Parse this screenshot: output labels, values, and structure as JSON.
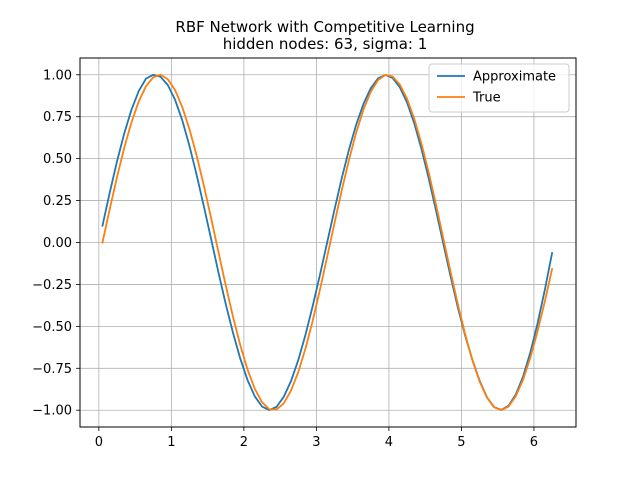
{
  "chart_data": {
    "type": "line",
    "title_line1": "RBF Network with Competitive Learning",
    "title_line2": "hidden nodes: 63, sigma: 1",
    "xlabel": "",
    "ylabel": "",
    "xlim": [
      -0.26,
      6.58
    ],
    "ylim": [
      -1.1,
      1.1
    ],
    "xticks": [
      0,
      1,
      2,
      3,
      4,
      5,
      6
    ],
    "xtick_labels": [
      "0",
      "1",
      "2",
      "3",
      "4",
      "5",
      "6"
    ],
    "yticks": [
      -1.0,
      -0.75,
      -0.5,
      -0.25,
      0.0,
      0.25,
      0.5,
      0.75,
      1.0
    ],
    "ytick_labels": [
      "−1.00",
      "−0.75",
      "−0.50",
      "−0.25",
      "0.00",
      "0.25",
      "0.50",
      "0.75",
      "1.00"
    ],
    "grid": true,
    "legend_position": "top-right",
    "series": [
      {
        "name": "Approximate",
        "color": "#1f77b4",
        "x": [
          0.05,
          0.15,
          0.25,
          0.35,
          0.45,
          0.55,
          0.65,
          0.75,
          0.85,
          0.95,
          1.05,
          1.15,
          1.25,
          1.35,
          1.45,
          1.55,
          1.65,
          1.75,
          1.85,
          1.95,
          2.05,
          2.15,
          2.25,
          2.35,
          2.45,
          2.55,
          2.65,
          2.75,
          2.85,
          2.95,
          3.05,
          3.15,
          3.25,
          3.35,
          3.45,
          3.55,
          3.65,
          3.75,
          3.85,
          3.95,
          4.05,
          4.15,
          4.25,
          4.35,
          4.45,
          4.55,
          4.65,
          4.75,
          4.85,
          4.95,
          5.05,
          5.15,
          5.25,
          5.35,
          5.45,
          5.55,
          5.65,
          5.75,
          5.85,
          5.95,
          6.05,
          6.15,
          6.25
        ],
        "y": [
          0.1,
          0.297,
          0.483,
          0.65,
          0.792,
          0.903,
          0.977,
          1.0,
          0.988,
          0.94,
          0.852,
          0.729,
          0.575,
          0.4,
          0.212,
          0.017,
          -0.18,
          -0.367,
          -0.539,
          -0.692,
          -0.82,
          -0.917,
          -0.978,
          -0.999,
          -0.98,
          -0.92,
          -0.826,
          -0.701,
          -0.549,
          -0.377,
          -0.191,
          0.003,
          0.197,
          0.384,
          0.555,
          0.704,
          0.827,
          0.92,
          0.978,
          0.999,
          0.981,
          0.926,
          0.835,
          0.71,
          0.556,
          0.38,
          0.19,
          -0.006,
          -0.201,
          -0.386,
          -0.553,
          -0.698,
          -0.823,
          -0.921,
          -0.981,
          -0.998,
          -0.973,
          -0.906,
          -0.8,
          -0.656,
          -0.482,
          -0.283,
          -0.063
        ]
      },
      {
        "name": "True",
        "color": "#ff7f0e",
        "x": [
          0.05,
          0.15,
          0.25,
          0.35,
          0.45,
          0.55,
          0.65,
          0.75,
          0.85,
          0.95,
          1.05,
          1.15,
          1.25,
          1.35,
          1.45,
          1.55,
          1.65,
          1.75,
          1.85,
          1.95,
          2.05,
          2.15,
          2.25,
          2.35,
          2.45,
          2.55,
          2.65,
          2.75,
          2.85,
          2.95,
          3.05,
          3.15,
          3.25,
          3.35,
          3.45,
          3.55,
          3.65,
          3.75,
          3.85,
          3.95,
          4.05,
          4.15,
          4.25,
          4.35,
          4.45,
          4.55,
          4.65,
          4.75,
          4.85,
          4.95,
          5.05,
          5.15,
          5.25,
          5.35,
          5.45,
          5.55,
          5.65,
          5.75,
          5.85,
          5.95,
          6.05,
          6.15,
          6.25
        ],
        "y": [
          0.0,
          0.199,
          0.389,
          0.565,
          0.717,
          0.841,
          0.932,
          0.985,
          1.0,
          0.974,
          0.909,
          0.808,
          0.675,
          0.516,
          0.335,
          0.141,
          -0.058,
          -0.256,
          -0.443,
          -0.612,
          -0.757,
          -0.872,
          -0.952,
          -0.994,
          -0.996,
          -0.959,
          -0.883,
          -0.773,
          -0.631,
          -0.465,
          -0.279,
          -0.083,
          0.117,
          0.312,
          0.494,
          0.657,
          0.794,
          0.899,
          0.968,
          0.999,
          0.99,
          0.942,
          0.857,
          0.737,
          0.588,
          0.415,
          0.225,
          0.025,
          -0.174,
          -0.366,
          -0.544,
          -0.7,
          -0.828,
          -0.923,
          -0.982,
          -1.0,
          -0.978,
          -0.916,
          -0.818,
          -0.687,
          -0.529,
          -0.351,
          -0.158
        ]
      }
    ]
  }
}
